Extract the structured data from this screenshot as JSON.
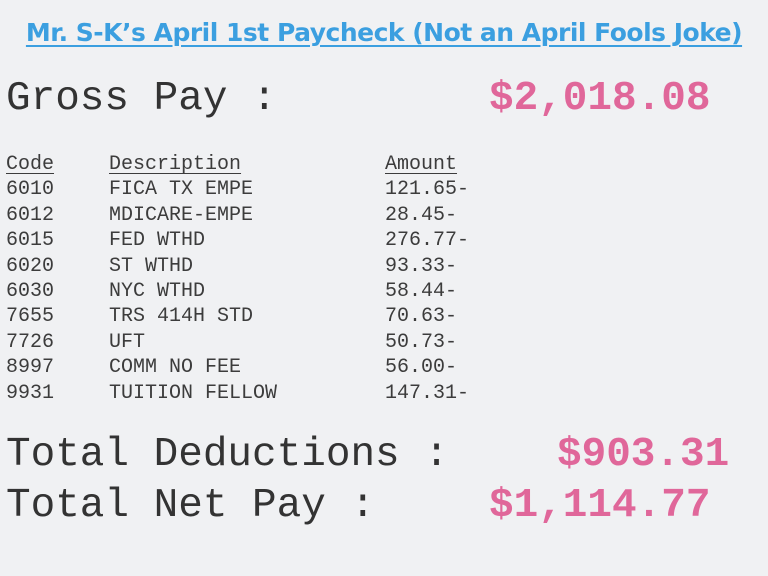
{
  "title": "Mr. S-K’s April 1st Paycheck (Not an April Fools Joke)",
  "gross": {
    "label": "Gross Pay :",
    "amount": "$2,018.08"
  },
  "table": {
    "headers": {
      "code": "Code",
      "description": "Description",
      "amount": "Amount"
    },
    "rows": [
      {
        "code": "6010",
        "description": "FICA TX EMPE",
        "amount": "121.65-"
      },
      {
        "code": "6012",
        "description": "MDICARE-EMPE",
        "amount": "28.45-"
      },
      {
        "code": "6015",
        "description": "FED WTHD",
        "amount": "276.77-"
      },
      {
        "code": "6020",
        "description": "ST WTHD",
        "amount": "93.33-"
      },
      {
        "code": "6030",
        "description": "NYC WTHD",
        "amount": "58.44-"
      },
      {
        "code": "7655",
        "description": "TRS 414H STD",
        "amount": "70.63-"
      },
      {
        "code": "7726",
        "description": "UFT",
        "amount": "50.73-"
      },
      {
        "code": "8997",
        "description": "COMM NO FEE",
        "amount": "56.00-"
      },
      {
        "code": "9931",
        "description": "TUITION FELLOW",
        "amount": "147.31-"
      }
    ]
  },
  "total_deductions": {
    "label": "Total Deductions :",
    "amount": "$903.31"
  },
  "total_net_pay": {
    "label": "Total Net Pay :",
    "amount": "$1,114.77"
  },
  "colors": {
    "background": "#f0f1f3",
    "title": "#3b9fe0",
    "amount": "#e0679a",
    "text": "#333333"
  }
}
